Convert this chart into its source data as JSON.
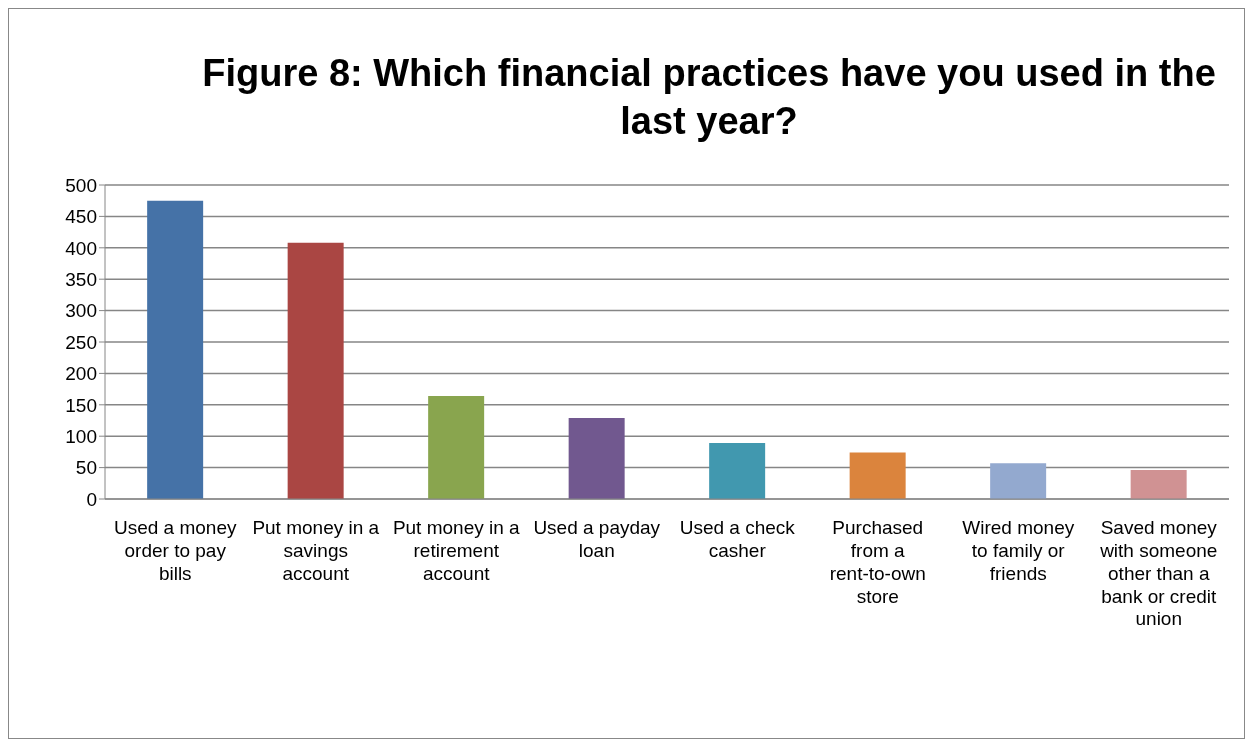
{
  "chart_data": {
    "type": "bar",
    "title": "Figure 8: Which financial practices have you used in the last year?",
    "categories": [
      "Used a money order to pay bills",
      "Put money in a savings account",
      "Put money in a retirement account",
      "Used a payday loan",
      "Used a check casher",
      "Purchased from a rent-to-own store",
      "Wired money to family or friends",
      "Saved money with someone other than a bank or credit union"
    ],
    "values": [
      475,
      408,
      164,
      129,
      89,
      74,
      57,
      46
    ],
    "colors": [
      "#4572a7",
      "#aa4643",
      "#89a54e",
      "#71588f",
      "#4198af",
      "#db843d",
      "#93a9cf",
      "#d09293"
    ],
    "ylim": [
      0,
      500
    ],
    "yticks": [
      0,
      50,
      100,
      150,
      200,
      250,
      300,
      350,
      400,
      450,
      500
    ],
    "grid": "y"
  }
}
